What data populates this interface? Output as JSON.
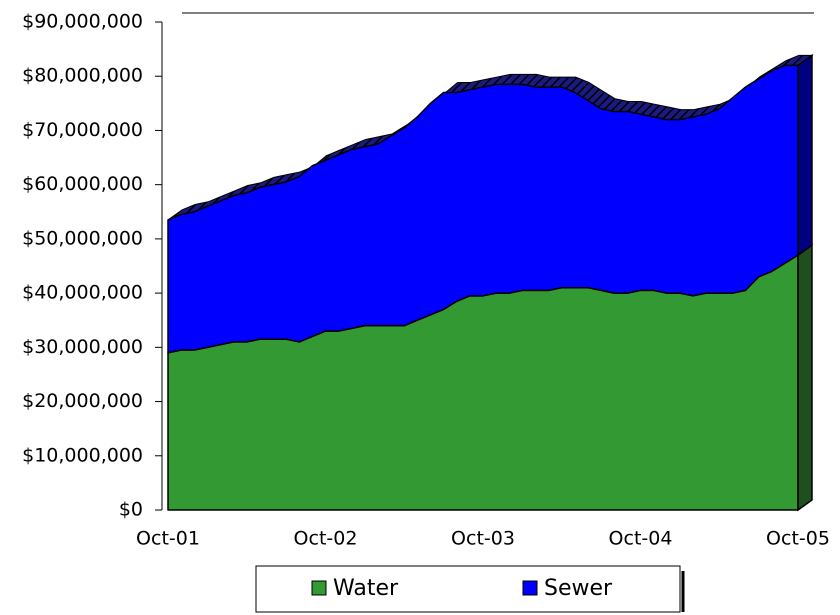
{
  "chart_data": {
    "type": "area",
    "stacked": true,
    "categories": [
      "Oct-01",
      null,
      null,
      null,
      null,
      null,
      null,
      null,
      null,
      null,
      null,
      null,
      "Oct-02",
      null,
      null,
      null,
      null,
      null,
      null,
      null,
      null,
      null,
      null,
      null,
      "Oct-03",
      null,
      null,
      null,
      null,
      null,
      null,
      null,
      null,
      null,
      null,
      null,
      "Oct-04",
      null,
      null,
      null,
      null,
      null,
      null,
      null,
      null,
      null,
      null,
      null,
      "Oct-05"
    ],
    "series": [
      {
        "name": "Water",
        "color": "#339933",
        "values": [
          29000000,
          29500000,
          29500000,
          30000000,
          30500000,
          31000000,
          31000000,
          31500000,
          31500000,
          31500000,
          31000000,
          32000000,
          33000000,
          33000000,
          33500000,
          34000000,
          34000000,
          34000000,
          34000000,
          35000000,
          36000000,
          37000000,
          38500000,
          39500000,
          39500000,
          40000000,
          40000000,
          40500000,
          40500000,
          40500000,
          41000000,
          41000000,
          41000000,
          40500000,
          40000000,
          40000000,
          40500000,
          40500000,
          40000000,
          40000000,
          39500000,
          40000000,
          40000000,
          40000000,
          40500000,
          43000000,
          44000000,
          45500000,
          47000000
        ]
      },
      {
        "name": "Sewer",
        "color": "#0000ff",
        "values": [
          24500000,
          25000000,
          25500000,
          26000000,
          26500000,
          27000000,
          27500000,
          28000000,
          28500000,
          29000000,
          30500000,
          31500000,
          31500000,
          32500000,
          33000000,
          33000000,
          33500000,
          35000000,
          36500000,
          37500000,
          39000000,
          40000000,
          38500000,
          38000000,
          38500000,
          38500000,
          38500000,
          38000000,
          37500000,
          37500000,
          37000000,
          36000000,
          34500000,
          33500000,
          33500000,
          33500000,
          32500000,
          32000000,
          32000000,
          32000000,
          33000000,
          33000000,
          34000000,
          36000000,
          37500000,
          36500000,
          37000000,
          36500000,
          35000000
        ]
      }
    ],
    "ylim": [
      0,
      90000000
    ],
    "yticks": [
      {
        "value": 0,
        "label": "$0"
      },
      {
        "value": 10000000,
        "label": "$10,000,000"
      },
      {
        "value": 20000000,
        "label": "$20,000,000"
      },
      {
        "value": 30000000,
        "label": "$30,000,000"
      },
      {
        "value": 40000000,
        "label": "$40,000,000"
      },
      {
        "value": 50000000,
        "label": "$50,000,000"
      },
      {
        "value": 60000000,
        "label": "$60,000,000"
      },
      {
        "value": 70000000,
        "label": "$70,000,000"
      },
      {
        "value": 80000000,
        "label": "$80,000,000"
      },
      {
        "value": 90000000,
        "label": "$90,000,000"
      }
    ],
    "legend": "bottom"
  }
}
